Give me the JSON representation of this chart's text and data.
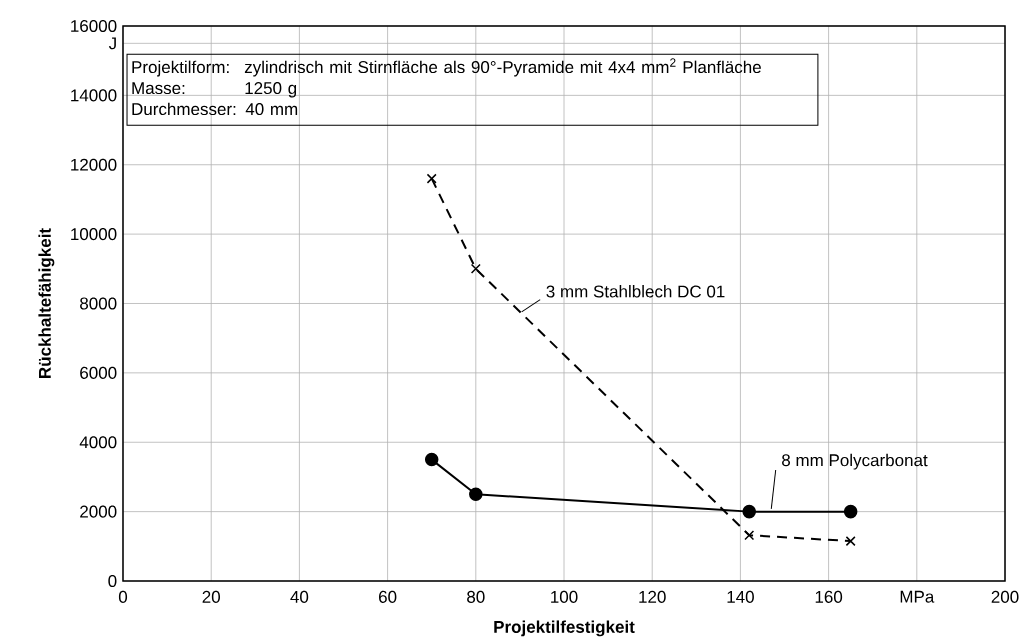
{
  "chart_data": {
    "type": "line",
    "xlabel": "Projektilfestigkeit",
    "ylabel": "Rückhaltefähigkeit",
    "xlim": [
      0,
      200
    ],
    "ylim": [
      0,
      16000
    ],
    "xticks": [
      0,
      20,
      40,
      60,
      80,
      100,
      120,
      140,
      160,
      {
        "value": 180,
        "label": "MPa"
      },
      200
    ],
    "yticks": [
      0,
      2000,
      4000,
      6000,
      8000,
      10000,
      12000,
      14000,
      {
        "value": 15500,
        "label": "J"
      },
      16000
    ],
    "grid": true,
    "annotations": [
      "Projektilform:",
      "zylindrisch mit Stirnfläche als 90°-Pyramide mit 4x4 mm$^{2}$ Planfläche",
      "Masse:",
      "1250 g",
      "Durchmesser: 40 mm"
    ],
    "series": [
      {
        "name": "3 mm Stahlblech DC 01",
        "color": "#000000",
        "marker": "cross",
        "line_style": "dashed",
        "x": [
          70,
          80,
          142,
          165
        ],
        "values": [
          11600,
          9000,
          1320,
          1150
        ]
      },
      {
        "name": "8 mm Polycarbonat",
        "color": "#000000",
        "marker": "circle",
        "line_style": "solid",
        "x": [
          70,
          80,
          142,
          165
        ],
        "values": [
          3500,
          2500,
          2000,
          2000
        ]
      }
    ]
  }
}
